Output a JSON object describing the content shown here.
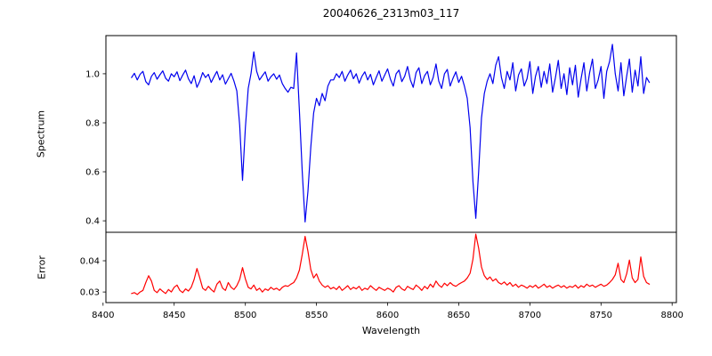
{
  "chart_data": [
    {
      "type": "line",
      "name": "spectrum",
      "title": "20040626_2313m03_117",
      "ylabel": "Spectrum",
      "color": "#0000ee",
      "xlim": [
        8402,
        8803
      ],
      "ylim": [
        0.353,
        1.156
      ],
      "yticks": [
        1.0,
        0.8,
        0.6,
        0.4
      ],
      "ytick_labels": [
        "1.0",
        "0.8",
        "0.6",
        "0.4"
      ],
      "x_start": 8420,
      "x_step": 2,
      "absorption_line_centers": [
        8498,
        8542,
        8662
      ],
      "absorption_line_depths": [
        0.565,
        0.395,
        0.41
      ],
      "values": [
        0.985,
        1.002,
        0.975,
        0.998,
        1.01,
        0.968,
        0.955,
        0.99,
        1.005,
        0.978,
        0.996,
        1.012,
        0.982,
        0.97,
        1.0,
        0.988,
        1.008,
        0.972,
        0.995,
        1.015,
        0.98,
        0.96,
        0.992,
        0.945,
        0.97,
        1.005,
        0.985,
        0.998,
        0.965,
        0.988,
        1.01,
        0.975,
        0.996,
        0.958,
        0.98,
        1.002,
        0.97,
        0.93,
        0.79,
        0.565,
        0.78,
        0.94,
        1.0,
        1.09,
        1.01,
        0.975,
        0.992,
        1.008,
        0.97,
        0.988,
        1.0,
        0.978,
        0.995,
        0.96,
        0.94,
        0.925,
        0.945,
        0.94,
        1.085,
        0.85,
        0.6,
        0.395,
        0.52,
        0.7,
        0.84,
        0.9,
        0.87,
        0.92,
        0.89,
        0.95,
        0.975,
        0.975,
        1.0,
        0.985,
        1.01,
        0.97,
        0.995,
        1.015,
        0.98,
        1.0,
        0.962,
        0.99,
        1.008,
        0.975,
        0.998,
        0.955,
        0.985,
        1.012,
        0.97,
        0.995,
        1.02,
        0.978,
        0.95,
        1.0,
        1.015,
        0.968,
        0.99,
        1.03,
        0.975,
        0.945,
        1.005,
        1.025,
        0.96,
        0.992,
        1.01,
        0.955,
        0.985,
        1.04,
        0.97,
        0.94,
        1.0,
        1.018,
        0.95,
        0.982,
        1.008,
        0.965,
        0.99,
        0.95,
        0.9,
        0.78,
        0.56,
        0.41,
        0.6,
        0.82,
        0.92,
        0.97,
        1.0,
        0.96,
        1.035,
        1.07,
        0.985,
        0.94,
        1.01,
        0.975,
        1.045,
        0.93,
        0.995,
        1.02,
        0.95,
        0.98,
        1.05,
        0.92,
        0.99,
        1.03,
        0.945,
        1.01,
        0.96,
        1.04,
        0.925,
        0.985,
        1.055,
        0.94,
        1.0,
        0.915,
        1.025,
        0.955,
        1.035,
        0.905,
        0.98,
        1.045,
        0.93,
        1.005,
        1.06,
        0.94,
        0.975,
        1.03,
        0.9,
        1.01,
        1.05,
        1.12,
        1.0,
        0.93,
        1.045,
        0.91,
        0.99,
        1.06,
        0.925,
        1.015,
        0.95,
        1.07,
        0.92,
        0.985,
        0.965
      ]
    },
    {
      "type": "line",
      "name": "error",
      "ylabel": "Error",
      "xlabel": "Wavelength",
      "color": "#ff0000",
      "xlim": [
        8402,
        8803
      ],
      "ylim": [
        0.0266,
        0.0491
      ],
      "yticks": [
        0.04,
        0.03
      ],
      "ytick_labels": [
        "0.04",
        "0.03"
      ],
      "xticks": [
        8400,
        8450,
        8500,
        8550,
        8600,
        8650,
        8700,
        8750,
        8800
      ],
      "xtick_labels": [
        "8400",
        "8450",
        "8500",
        "8550",
        "8600",
        "8650",
        "8700",
        "8750",
        "8800"
      ],
      "x_start": 8420,
      "x_step": 2,
      "values": [
        0.0295,
        0.0298,
        0.0292,
        0.03,
        0.0305,
        0.033,
        0.0352,
        0.0335,
        0.0305,
        0.0298,
        0.031,
        0.0302,
        0.0295,
        0.0308,
        0.03,
        0.0315,
        0.0322,
        0.0305,
        0.0298,
        0.031,
        0.0303,
        0.0315,
        0.034,
        0.0375,
        0.0345,
        0.0312,
        0.0305,
        0.0318,
        0.0308,
        0.03,
        0.0325,
        0.0335,
        0.0312,
        0.0305,
        0.033,
        0.0315,
        0.0308,
        0.032,
        0.034,
        0.0378,
        0.0342,
        0.0315,
        0.031,
        0.0322,
        0.0305,
        0.0312,
        0.03,
        0.031,
        0.0305,
        0.0315,
        0.0308,
        0.0312,
        0.0305,
        0.0315,
        0.032,
        0.0318,
        0.0325,
        0.033,
        0.0345,
        0.037,
        0.042,
        0.0478,
        0.043,
        0.0372,
        0.0345,
        0.0358,
        0.0335,
        0.0322,
        0.0315,
        0.032,
        0.031,
        0.0315,
        0.0308,
        0.0318,
        0.0305,
        0.0312,
        0.032,
        0.0308,
        0.0315,
        0.031,
        0.0318,
        0.0305,
        0.0312,
        0.0308,
        0.032,
        0.0312,
        0.0305,
        0.0315,
        0.031,
        0.0305,
        0.0312,
        0.0308,
        0.03,
        0.0315,
        0.032,
        0.031,
        0.0305,
        0.0318,
        0.0312,
        0.0308,
        0.0322,
        0.0315,
        0.0305,
        0.0318,
        0.031,
        0.0325,
        0.0315,
        0.0335,
        0.0322,
        0.0315,
        0.0328,
        0.032,
        0.033,
        0.0322,
        0.0318,
        0.0325,
        0.033,
        0.0335,
        0.0345,
        0.036,
        0.0405,
        0.0485,
        0.044,
        0.038,
        0.0352,
        0.034,
        0.0348,
        0.0335,
        0.0342,
        0.033,
        0.0325,
        0.0332,
        0.0322,
        0.033,
        0.0318,
        0.0325,
        0.0315,
        0.0322,
        0.0318,
        0.0312,
        0.032,
        0.0315,
        0.0322,
        0.0312,
        0.0318,
        0.0325,
        0.0315,
        0.032,
        0.0312,
        0.0318,
        0.0322,
        0.0315,
        0.032,
        0.0312,
        0.0318,
        0.0315,
        0.0322,
        0.0312,
        0.032,
        0.0315,
        0.0325,
        0.0318,
        0.0322,
        0.0315,
        0.032,
        0.0325,
        0.0318,
        0.0322,
        0.033,
        0.034,
        0.0355,
        0.0392,
        0.034,
        0.033,
        0.0358,
        0.0402,
        0.0345,
        0.033,
        0.034,
        0.0412,
        0.035,
        0.033,
        0.0325
      ]
    }
  ]
}
